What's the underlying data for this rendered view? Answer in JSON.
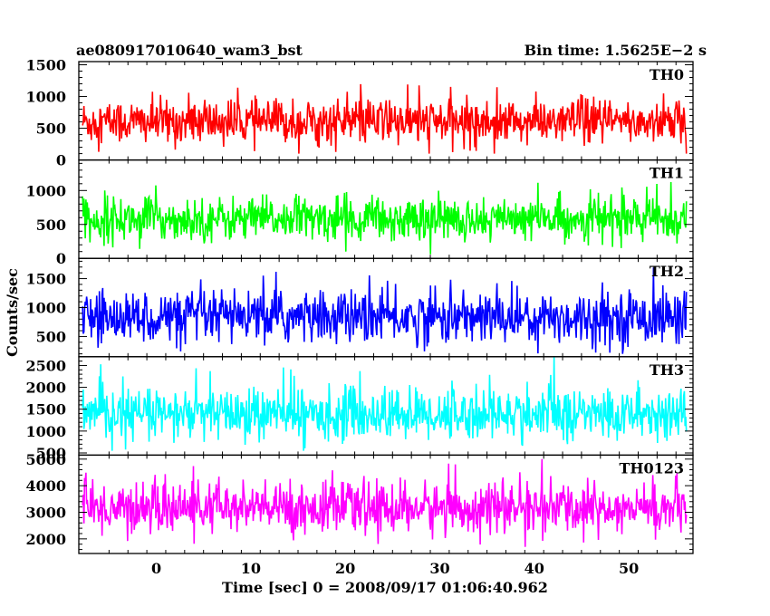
{
  "header": {
    "title": "ae080917010640_wam3_bst",
    "bin_time": "Bin time: 1.5625E−2 s"
  },
  "chart_data": {
    "type": "line",
    "title": "ae080917010640_wam3_bst",
    "subtitle": "Bin time: 1.5625E−2 s",
    "xlabel": "Time [sec] 0 = 2008/09/17 01:06:40.962",
    "ylabel": "Counts/sec",
    "xlim": [
      -8.2,
      56.8
    ],
    "x_data_range": [
      -7.8,
      56.1
    ],
    "x_ticks": [
      0,
      10,
      20,
      30,
      40,
      50
    ],
    "x_tick_labels": [
      "0",
      "10",
      "20",
      "30",
      "40",
      "50"
    ],
    "panels": [
      {
        "name": "TH0",
        "color": "#ff0000",
        "ylim": [
          0,
          1550
        ],
        "y_ticks": [
          0,
          500,
          1000,
          1500
        ],
        "y_tick_labels": [
          "0",
          "500",
          "1000",
          "1500"
        ],
        "mean": 600,
        "sd": 180,
        "min": 100,
        "max": 1550
      },
      {
        "name": "TH1",
        "color": "#00ff00",
        "ylim": [
          0,
          1450
        ],
        "y_ticks": [
          0,
          500,
          1000
        ],
        "y_tick_labels": [
          "0",
          "500",
          "1000"
        ],
        "mean": 580,
        "sd": 160,
        "min": 60,
        "max": 1400
      },
      {
        "name": "TH2",
        "color": "#0000ff",
        "ylim": [
          150,
          1850
        ],
        "y_ticks": [
          500,
          1000,
          1500
        ],
        "y_tick_labels": [
          "500",
          "1000",
          "1500"
        ],
        "mean": 830,
        "sd": 230,
        "min": 200,
        "max": 1850
      },
      {
        "name": "TH3",
        "color": "#00ffff",
        "ylim": [
          450,
          2700
        ],
        "y_ticks": [
          500,
          1000,
          1500,
          2000,
          2500
        ],
        "y_tick_labels": [
          "500",
          "1000",
          "1500",
          "2000",
          "2500"
        ],
        "mean": 1380,
        "sd": 300,
        "min": 550,
        "max": 2700
      },
      {
        "name": "TH0123",
        "color": "#ff00ff",
        "ylim": [
          1450,
          5150
        ],
        "y_ticks": [
          2000,
          3000,
          4000,
          5000
        ],
        "y_tick_labels": [
          "2000",
          "3000",
          "4000",
          "5000"
        ],
        "mean": 3150,
        "sd": 480,
        "min": 1500,
        "max": 5000
      }
    ]
  }
}
